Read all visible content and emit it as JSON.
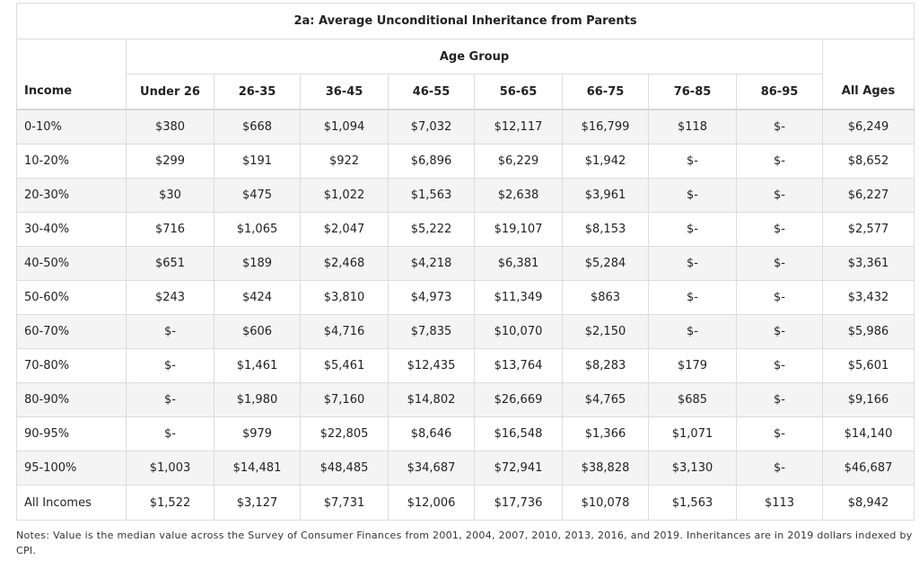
{
  "table": {
    "title": "2a: Average Unconditional Inheritance from Parents",
    "group_label": "Age Group",
    "row_header": "Income",
    "columns": [
      "Under 26",
      "26-35",
      "36-45",
      "46-55",
      "56-65",
      "66-75",
      "76-85",
      "86-95"
    ],
    "total_column": "All Ages",
    "rows": [
      {
        "label": "0-10%",
        "values": [
          "$380",
          "$668",
          "$1,094",
          "$7,032",
          "$12,117",
          "$16,799",
          "$118",
          "$-"
        ],
        "total": "$6,249"
      },
      {
        "label": "10-20%",
        "values": [
          "$299",
          "$191",
          "$922",
          "$6,896",
          "$6,229",
          "$1,942",
          "$-",
          "$-"
        ],
        "total": "$8,652"
      },
      {
        "label": "20-30%",
        "values": [
          "$30",
          "$475",
          "$1,022",
          "$1,563",
          "$2,638",
          "$3,961",
          "$-",
          "$-"
        ],
        "total": "$6,227"
      },
      {
        "label": "30-40%",
        "values": [
          "$716",
          "$1,065",
          "$2,047",
          "$5,222",
          "$19,107",
          "$8,153",
          "$-",
          "$-"
        ],
        "total": "$2,577"
      },
      {
        "label": "40-50%",
        "values": [
          "$651",
          "$189",
          "$2,468",
          "$4,218",
          "$6,381",
          "$5,284",
          "$-",
          "$-"
        ],
        "total": "$3,361"
      },
      {
        "label": "50-60%",
        "values": [
          "$243",
          "$424",
          "$3,810",
          "$4,973",
          "$11,349",
          "$863",
          "$-",
          "$-"
        ],
        "total": "$3,432"
      },
      {
        "label": "60-70%",
        "values": [
          "$-",
          "$606",
          "$4,716",
          "$7,835",
          "$10,070",
          "$2,150",
          "$-",
          "$-"
        ],
        "total": "$5,986"
      },
      {
        "label": "70-80%",
        "values": [
          "$-",
          "$1,461",
          "$5,461",
          "$12,435",
          "$13,764",
          "$8,283",
          "$179",
          "$-"
        ],
        "total": "$5,601"
      },
      {
        "label": "80-90%",
        "values": [
          "$-",
          "$1,980",
          "$7,160",
          "$14,802",
          "$26,669",
          "$4,765",
          "$685",
          "$-"
        ],
        "total": "$9,166"
      },
      {
        "label": "90-95%",
        "values": [
          "$-",
          "$979",
          "$22,805",
          "$8,646",
          "$16,548",
          "$1,366",
          "$1,071",
          "$-"
        ],
        "total": "$14,140"
      },
      {
        "label": "95-100%",
        "values": [
          "$1,003",
          "$14,481",
          "$48,485",
          "$34,687",
          "$72,941",
          "$38,828",
          "$3,130",
          "$-"
        ],
        "total": "$46,687"
      },
      {
        "label": "All Incomes",
        "values": [
          "$1,522",
          "$3,127",
          "$7,731",
          "$12,006",
          "$17,736",
          "$10,078",
          "$1,563",
          "$113"
        ],
        "total": "$8,942"
      }
    ]
  },
  "notes": "Notes: Value is the median value across the Survey of Consumer Finances from 2001, 2004, 2007, 2010, 2013, 2016, and 2019. Inheritances are in 2019 dollars indexed by CPI."
}
